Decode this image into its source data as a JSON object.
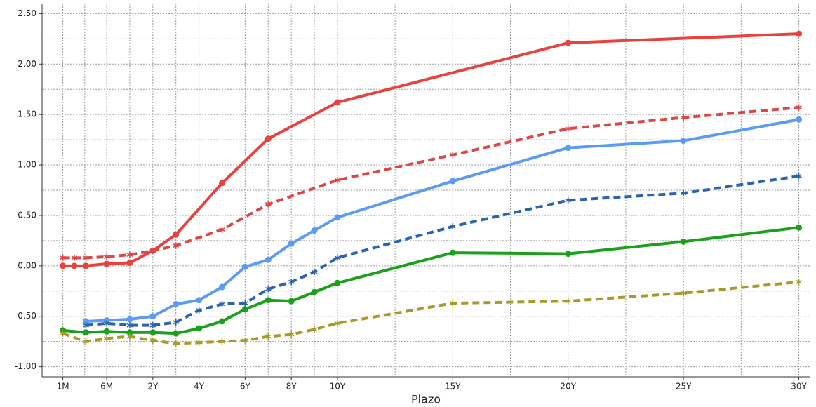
{
  "chart_data": {
    "type": "line",
    "x_label": "Plazo",
    "xlim": [
      -2.8,
      30.5
    ],
    "ylim": [
      -1.1,
      2.6
    ],
    "xticks": [
      {
        "value": -1.9,
        "label": "1M"
      },
      {
        "value": 0,
        "label": "6M"
      },
      {
        "value": 2,
        "label": "2Y"
      },
      {
        "value": 4,
        "label": "4Y"
      },
      {
        "value": 6,
        "label": "6Y"
      },
      {
        "value": 8,
        "label": "8Y"
      },
      {
        "value": 10,
        "label": "10Y"
      },
      {
        "value": 15,
        "label": "15Y"
      },
      {
        "value": 20,
        "label": "20Y"
      },
      {
        "value": 25,
        "label": "25Y"
      },
      {
        "value": 30,
        "label": "30Y"
      }
    ],
    "yticks": [
      {
        "value": -1,
        "label": "-1.00"
      },
      {
        "value": -0.5,
        "label": "-0.50"
      },
      {
        "value": 0,
        "label": "0.00"
      },
      {
        "value": 0.5,
        "label": "0.50"
      },
      {
        "value": 1,
        "label": "1.00"
      },
      {
        "value": 1.5,
        "label": "1.50"
      },
      {
        "value": 2,
        "label": "2.00"
      },
      {
        "value": 2.5,
        "label": "2.50"
      }
    ],
    "grid": true,
    "series": [
      {
        "color": "#e8413e",
        "dashed": false,
        "marker": "circle",
        "x": [
          -1.9,
          -1.4,
          -0.9,
          0,
          1,
          2,
          3,
          5,
          7,
          10,
          20,
          30
        ],
        "values": [
          0.0,
          0.0,
          0.0,
          0.02,
          0.03,
          0.15,
          0.31,
          0.82,
          1.26,
          1.62,
          2.21,
          2.3
        ]
      },
      {
        "color": "#e04444",
        "dashed": true,
        "marker": "star",
        "x": [
          -1.9,
          -1.4,
          -0.9,
          0,
          1,
          2,
          3,
          5,
          7,
          10,
          15,
          20,
          25,
          30
        ],
        "values": [
          0.08,
          0.08,
          0.08,
          0.09,
          0.11,
          0.15,
          0.2,
          0.36,
          0.61,
          0.85,
          1.1,
          1.36,
          1.47,
          1.57
        ]
      },
      {
        "color": "#5c9bf5",
        "dashed": false,
        "marker": "circle",
        "x": [
          -0.9,
          0,
          1,
          2,
          3,
          4,
          5,
          6,
          7,
          8,
          9,
          10,
          15,
          20,
          25,
          30
        ],
        "values": [
          -0.55,
          -0.54,
          -0.53,
          -0.5,
          -0.38,
          -0.34,
          -0.21,
          -0.01,
          0.06,
          0.22,
          0.35,
          0.48,
          0.84,
          1.17,
          1.24,
          1.45
        ]
      },
      {
        "color": "#2a64b0",
        "dashed": true,
        "marker": "star",
        "x": [
          -0.9,
          0,
          1,
          2,
          3,
          4,
          5,
          6,
          7,
          8,
          9,
          10,
          15,
          20,
          25,
          30
        ],
        "values": [
          -0.59,
          -0.57,
          -0.59,
          -0.59,
          -0.56,
          -0.44,
          -0.38,
          -0.37,
          -0.23,
          -0.16,
          -0.06,
          0.08,
          0.39,
          0.65,
          0.72,
          0.89
        ]
      },
      {
        "color": "#1aa01a",
        "dashed": false,
        "marker": "circle",
        "x": [
          -1.9,
          -0.9,
          0,
          1,
          2,
          3,
          4,
          5,
          6,
          7,
          8,
          9,
          10,
          15,
          20,
          25,
          30
        ],
        "values": [
          -0.64,
          -0.66,
          -0.65,
          -0.66,
          -0.66,
          -0.67,
          -0.62,
          -0.55,
          -0.43,
          -0.34,
          -0.35,
          -0.26,
          -0.17,
          0.13,
          0.12,
          0.24,
          0.38
        ]
      },
      {
        "color": "#a89a2a",
        "dashed": true,
        "marker": "star",
        "x": [
          -1.9,
          -0.9,
          0,
          1,
          2,
          3,
          4,
          5,
          6,
          7,
          8,
          9,
          10,
          15,
          20,
          25,
          30
        ],
        "values": [
          -0.67,
          -0.75,
          -0.72,
          -0.7,
          -0.74,
          -0.77,
          -0.76,
          -0.75,
          -0.74,
          -0.7,
          -0.68,
          -0.63,
          -0.57,
          -0.37,
          -0.35,
          -0.27,
          -0.16
        ]
      }
    ]
  }
}
